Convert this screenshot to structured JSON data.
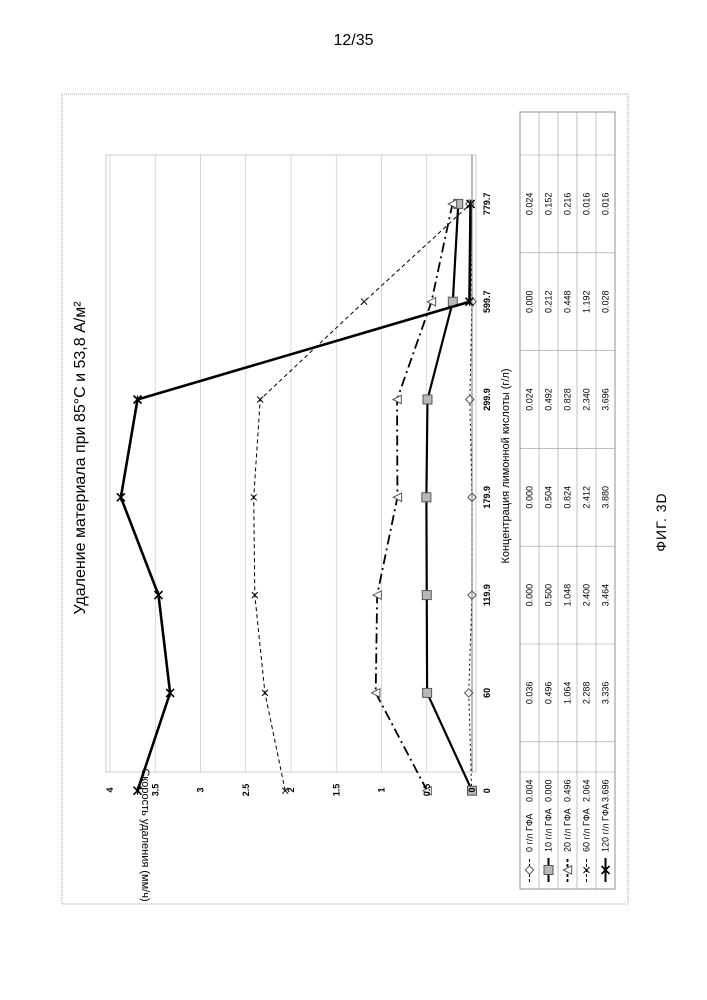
{
  "page_number": "12/35",
  "figure_caption": "ФИГ. 3D",
  "chart_data": {
    "type": "line",
    "title": "Удаление материала при 85°C и 53,8 А/м²",
    "xlabel": "Концентрация лимонной кислоты (г/л)",
    "ylabel": "Скорость удаления (мм/ч)",
    "categories": [
      "0",
      "60",
      "119.9",
      "179.9",
      "299.9",
      "599.7",
      "779.7"
    ],
    "ylim": [
      0,
      4
    ],
    "yticks": [
      "0",
      "0.5",
      "1",
      "1.5",
      "2",
      "2.5",
      "3",
      "3.5",
      "4"
    ],
    "grid": true,
    "legend": "data table below the plot",
    "series": [
      {
        "name": "0 г/л ГФА",
        "marker": "diamond",
        "dash": "2,3",
        "width": 1,
        "values": [
          0.004,
          0.036,
          0.0,
          0.0,
          0.024,
          0.0,
          0.024
        ],
        "labels": [
          "0.004",
          "0.036",
          "0.000",
          "0.000",
          "0.024",
          "0.000",
          "0.024"
        ]
      },
      {
        "name": "10 г/л ГФА",
        "marker": "square",
        "dash": "",
        "width": 2.2,
        "values": [
          0.0,
          0.496,
          0.5,
          0.504,
          0.492,
          0.212,
          0.152
        ],
        "labels": [
          "0.000",
          "0.496",
          "0.500",
          "0.504",
          "0.492",
          "0.212",
          "0.152"
        ]
      },
      {
        "name": "20 г/л ГФА",
        "marker": "triangle",
        "dash": "10,4,2,4",
        "width": 1.8,
        "values": [
          0.496,
          1.064,
          1.048,
          0.824,
          0.828,
          0.448,
          0.216
        ],
        "labels": [
          "0.496",
          "1.064",
          "1.048",
          "0.824",
          "0.828",
          "0.448",
          "0.216"
        ]
      },
      {
        "name": "60 г/л ГФА",
        "marker": "x",
        "dash": "4,3",
        "width": 1,
        "values": [
          2.064,
          2.288,
          2.4,
          2.412,
          2.34,
          1.192,
          0.016
        ],
        "labels": [
          "2.064",
          "2.288",
          "2.400",
          "2.412",
          "2.340",
          "1.192",
          "0.016"
        ]
      },
      {
        "name": "120 г/л ГФА",
        "marker": "star",
        "dash": "",
        "width": 2.6,
        "values": [
          3.696,
          3.336,
          3.464,
          3.88,
          3.696,
          0.028,
          0.016
        ],
        "labels": [
          "3.696",
          "3.336",
          "3.464",
          "3.880",
          "3.696",
          "0.028",
          "0.016"
        ]
      }
    ]
  }
}
